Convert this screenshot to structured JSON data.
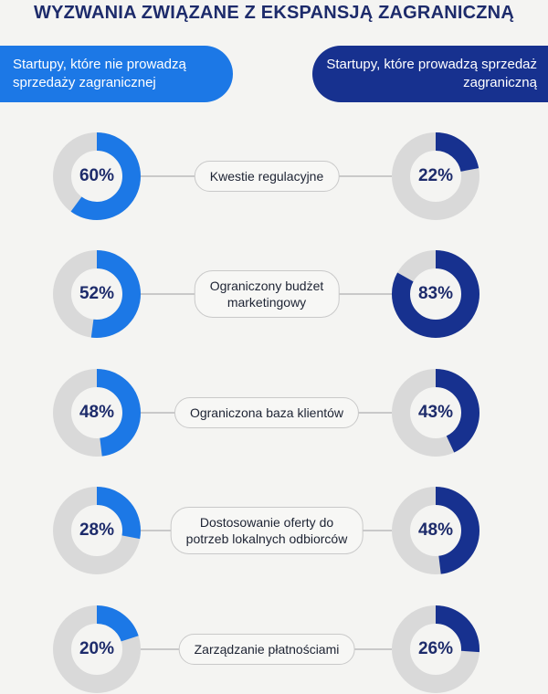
{
  "title": "WYZWANIA ZWIĄZANE Z EKSPANSJĄ ZAGRANICZNĄ",
  "headers": {
    "left": "Startupy, które nie prowadzą sprzedaży zagranicznej",
    "right": "Startupy, które prowadzą sprzedaż zagraniczną"
  },
  "colors": {
    "left_series": "#1c78e6",
    "right_series": "#17318f",
    "ring_track": "#d9d9d9"
  },
  "chart_data": {
    "type": "donut-pairs",
    "title": "WYZWANIA ZWIĄZANE Z EKSPANSJĄ ZAGRANICZNĄ",
    "categories": [
      "Kwestie regulacyjne",
      "Ograniczony budżet\nmarketingowy",
      "Ograniczona baza klientów",
      "Dostosowanie oferty do\npotrzeb lokalnych odbiorców",
      "Zarządzanie płatnościami"
    ],
    "series": [
      {
        "name": "Startupy, które nie prowadzą sprzedaży zagranicznej",
        "values": [
          60,
          52,
          48,
          28,
          20
        ],
        "labels": [
          "60%",
          "52%",
          "48%",
          "28%",
          "20%"
        ]
      },
      {
        "name": "Startupy, które prowadzą sprzedaż zagraniczną",
        "values": [
          22,
          83,
          43,
          48,
          26
        ],
        "labels": [
          "22%",
          "83%",
          "43%",
          "48%",
          "26%"
        ]
      }
    ],
    "unit": "%"
  }
}
